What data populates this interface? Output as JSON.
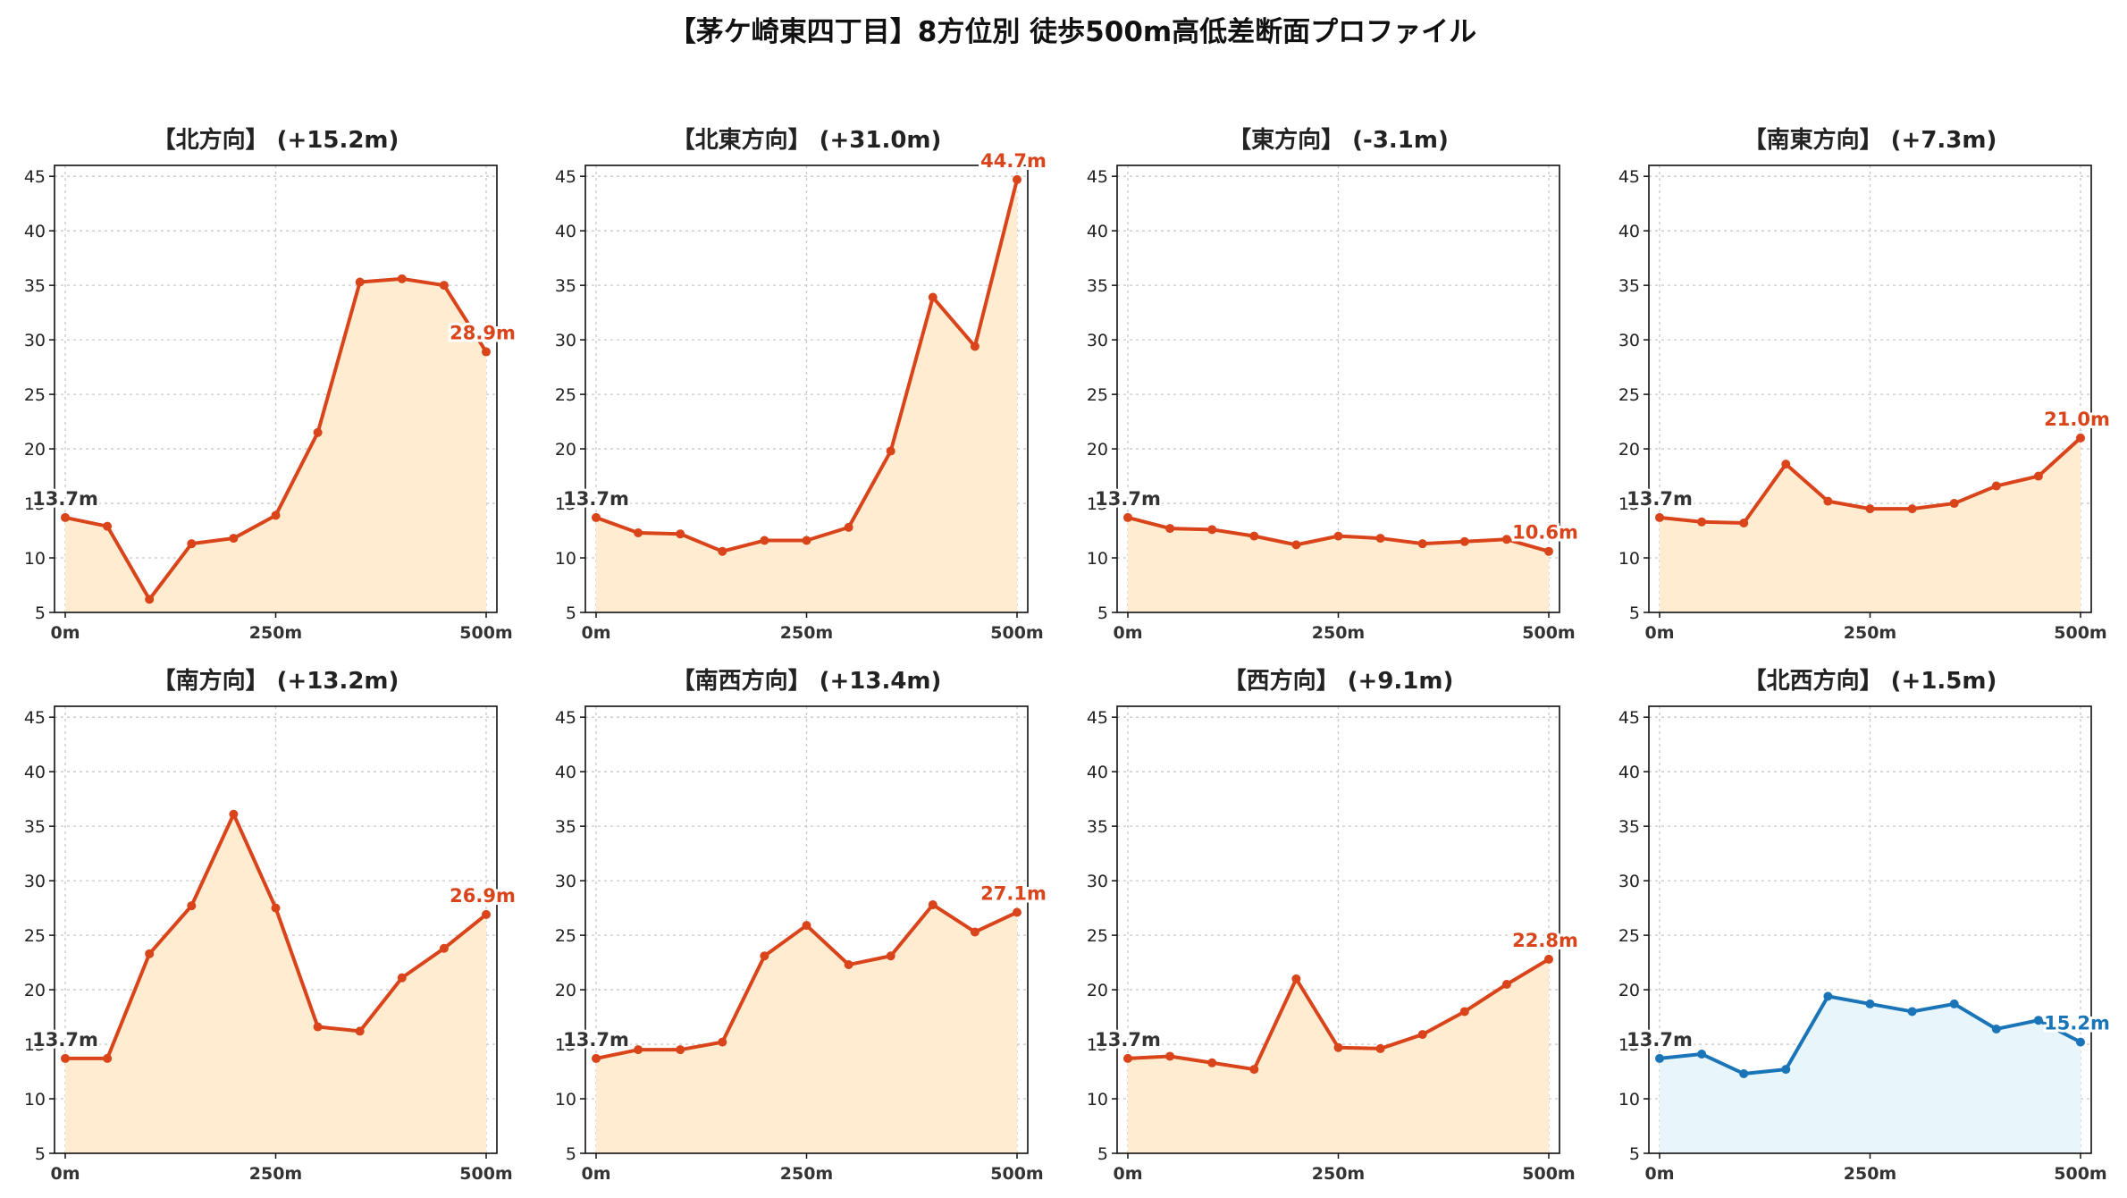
{
  "suptitle": "【茅ケ崎東四丁目】8方位別 徒歩500m高低差断面プロファイル",
  "colors": {
    "up_line": "#d9441a",
    "up_fill": "#ffecd1",
    "down_line": "#1a74b8",
    "down_fill": "#e8f6fc",
    "grid": "#c8c8c8",
    "start_label": "#333333"
  },
  "chart_data": [
    {
      "type": "area",
      "title": "【北方向】 (+15.2m)",
      "x": [
        0,
        50,
        100,
        150,
        200,
        250,
        300,
        350,
        400,
        450,
        500
      ],
      "values": [
        13.7,
        12.9,
        6.2,
        11.3,
        11.8,
        13.9,
        21.5,
        35.3,
        35.6,
        35.0,
        28.9
      ],
      "start_label": "13.7m",
      "end_label": "28.9m",
      "ylim": [
        5,
        46
      ],
      "yticks": [
        5,
        10,
        15,
        20,
        25,
        30,
        35,
        40,
        45
      ],
      "xtick_labels": [
        "0m",
        "250m",
        "500m"
      ],
      "grid": true,
      "color": "up"
    },
    {
      "type": "area",
      "title": "【北東方向】 (+31.0m)",
      "x": [
        0,
        50,
        100,
        150,
        200,
        250,
        300,
        350,
        400,
        450,
        500
      ],
      "values": [
        13.7,
        12.3,
        12.2,
        10.6,
        11.6,
        11.6,
        12.8,
        19.8,
        33.9,
        29.4,
        44.7
      ],
      "start_label": "13.7m",
      "end_label": "44.7m",
      "ylim": [
        5,
        46
      ],
      "yticks": [
        5,
        10,
        15,
        20,
        25,
        30,
        35,
        40,
        45
      ],
      "xtick_labels": [
        "0m",
        "250m",
        "500m"
      ],
      "grid": true,
      "color": "up"
    },
    {
      "type": "area",
      "title": "【東方向】 (-3.1m)",
      "x": [
        0,
        50,
        100,
        150,
        200,
        250,
        300,
        350,
        400,
        450,
        500
      ],
      "values": [
        13.7,
        12.7,
        12.6,
        12.0,
        11.2,
        12.0,
        11.8,
        11.3,
        11.5,
        11.7,
        10.6
      ],
      "start_label": "13.7m",
      "end_label": "10.6m",
      "ylim": [
        5,
        46
      ],
      "yticks": [
        5,
        10,
        15,
        20,
        25,
        30,
        35,
        40,
        45
      ],
      "xtick_labels": [
        "0m",
        "250m",
        "500m"
      ],
      "grid": true,
      "color": "up"
    },
    {
      "type": "area",
      "title": "【南東方向】 (+7.3m)",
      "x": [
        0,
        50,
        100,
        150,
        200,
        250,
        300,
        350,
        400,
        450,
        500
      ],
      "values": [
        13.7,
        13.3,
        13.2,
        18.6,
        15.2,
        14.5,
        14.5,
        15.0,
        16.6,
        17.5,
        21.0
      ],
      "start_label": "13.7m",
      "end_label": "21.0m",
      "ylim": [
        5,
        46
      ],
      "yticks": [
        5,
        10,
        15,
        20,
        25,
        30,
        35,
        40,
        45
      ],
      "xtick_labels": [
        "0m",
        "250m",
        "500m"
      ],
      "grid": true,
      "color": "up"
    },
    {
      "type": "area",
      "title": "【南方向】 (+13.2m)",
      "x": [
        0,
        50,
        100,
        150,
        200,
        250,
        300,
        350,
        400,
        450,
        500
      ],
      "values": [
        13.7,
        13.7,
        23.3,
        27.7,
        36.1,
        27.5,
        16.6,
        16.2,
        21.1,
        23.8,
        26.9
      ],
      "start_label": "13.7m",
      "end_label": "26.9m",
      "ylim": [
        5,
        46
      ],
      "yticks": [
        5,
        10,
        15,
        20,
        25,
        30,
        35,
        40,
        45
      ],
      "xtick_labels": [
        "0m",
        "250m",
        "500m"
      ],
      "grid": true,
      "color": "up"
    },
    {
      "type": "area",
      "title": "【南西方向】 (+13.4m)",
      "x": [
        0,
        50,
        100,
        150,
        200,
        250,
        300,
        350,
        400,
        450,
        500
      ],
      "values": [
        13.7,
        14.5,
        14.5,
        15.2,
        23.1,
        25.9,
        22.3,
        23.1,
        27.8,
        25.3,
        27.1
      ],
      "start_label": "13.7m",
      "end_label": "27.1m",
      "ylim": [
        5,
        46
      ],
      "yticks": [
        5,
        10,
        15,
        20,
        25,
        30,
        35,
        40,
        45
      ],
      "xtick_labels": [
        "0m",
        "250m",
        "500m"
      ],
      "grid": true,
      "color": "up"
    },
    {
      "type": "area",
      "title": "【西方向】 (+9.1m)",
      "x": [
        0,
        50,
        100,
        150,
        200,
        250,
        300,
        350,
        400,
        450,
        500
      ],
      "values": [
        13.7,
        13.9,
        13.3,
        12.7,
        21.0,
        14.7,
        14.6,
        15.9,
        18.0,
        20.5,
        22.8
      ],
      "start_label": "13.7m",
      "end_label": "22.8m",
      "ylim": [
        5,
        46
      ],
      "yticks": [
        5,
        10,
        15,
        20,
        25,
        30,
        35,
        40,
        45
      ],
      "xtick_labels": [
        "0m",
        "250m",
        "500m"
      ],
      "grid": true,
      "color": "up"
    },
    {
      "type": "area",
      "title": "【北西方向】 (+1.5m)",
      "x": [
        0,
        50,
        100,
        150,
        200,
        250,
        300,
        350,
        400,
        450,
        500
      ],
      "values": [
        13.7,
        14.1,
        12.3,
        12.7,
        19.4,
        18.7,
        18.0,
        18.7,
        16.4,
        17.2,
        15.2
      ],
      "start_label": "13.7m",
      "end_label": "15.2m",
      "ylim": [
        5,
        46
      ],
      "yticks": [
        5,
        10,
        15,
        20,
        25,
        30,
        35,
        40,
        45
      ],
      "xtick_labels": [
        "0m",
        "250m",
        "500m"
      ],
      "grid": true,
      "color": "down"
    }
  ]
}
